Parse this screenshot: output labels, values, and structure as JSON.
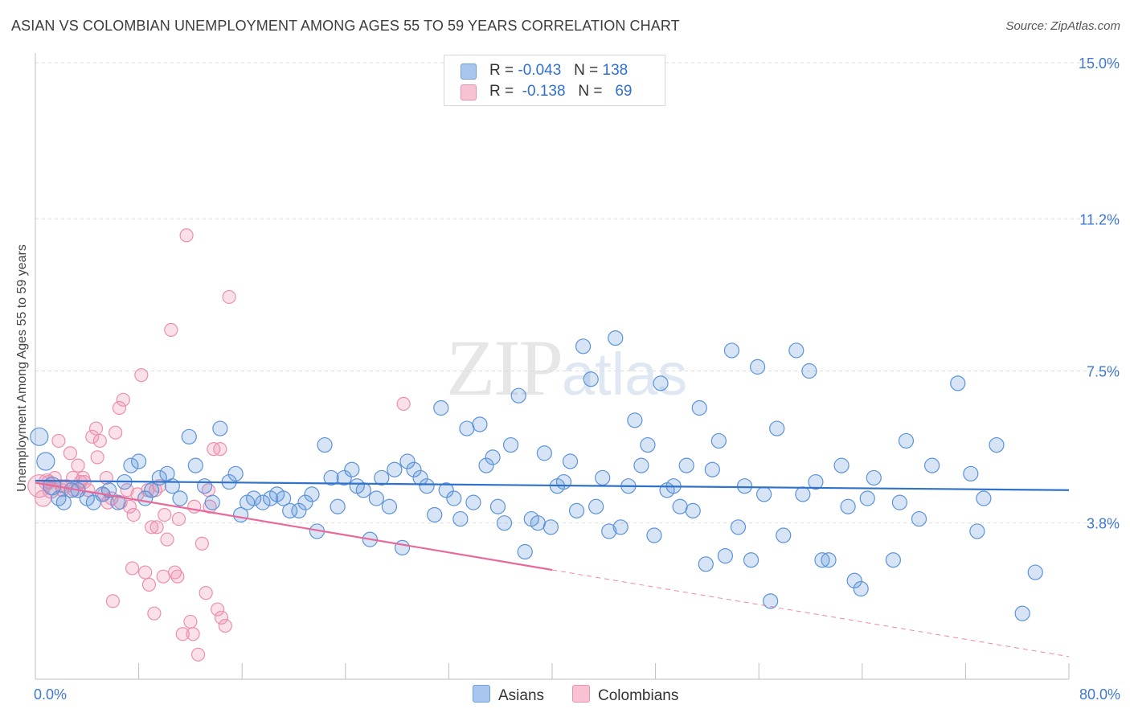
{
  "header": {
    "title": "ASIAN VS COLOMBIAN UNEMPLOYMENT AMONG AGES 55 TO 59 YEARS CORRELATION CHART",
    "source": "Source: ZipAtlas.com"
  },
  "watermark": {
    "zip": "ZIP",
    "atlas": "atlas"
  },
  "legend": {
    "rows": [
      {
        "r_label": "R =",
        "r_value": "-0.043",
        "n_label": "N =",
        "n_value": "138",
        "color": "#a9c6ef",
        "border": "#6f9fdc"
      },
      {
        "r_label": "R =",
        "r_value": "-0.138",
        "n_label": "N =",
        "n_value": "69",
        "color": "#f7c3d3",
        "border": "#ea8fae"
      }
    ]
  },
  "bottom_legend": {
    "asians": "Asians",
    "colombians": "Colombians"
  },
  "chart_data": {
    "type": "scatter",
    "xlabel": "",
    "ylabel": "Unemployment Among Ages 55 to 59 years",
    "xlim": [
      0,
      80
    ],
    "ylim": [
      0,
      15
    ],
    "x_tick_labels": [
      {
        "value": 0,
        "label": "0.0%"
      },
      {
        "value": 80,
        "label": "80.0%"
      }
    ],
    "y_tick_labels": [
      {
        "value": 3.8,
        "label": "3.8%"
      },
      {
        "value": 7.5,
        "label": "7.5%"
      },
      {
        "value": 11.2,
        "label": "11.2%"
      },
      {
        "value": 15.0,
        "label": "15.0%"
      }
    ],
    "grid": "horizontal-dashed",
    "colors": {
      "asians": "#5b93d9",
      "asians_line": "#2e72cc",
      "colombians": "#ec8fb0",
      "colombians_line": "#e8689a"
    },
    "series": [
      {
        "name": "Asians",
        "trend": {
          "x0": 0,
          "y0": 4.83,
          "x1": 80,
          "y1": 4.6
        },
        "points": [
          [
            0.3,
            5.9
          ],
          [
            0.8,
            5.3
          ],
          [
            1.3,
            4.7
          ],
          [
            1.8,
            4.4
          ],
          [
            2.2,
            4.3
          ],
          [
            2.8,
            4.6
          ],
          [
            3.3,
            4.6
          ],
          [
            4.0,
            4.4
          ],
          [
            4.5,
            4.3
          ],
          [
            5.2,
            4.5
          ],
          [
            5.7,
            4.6
          ],
          [
            6.4,
            4.3
          ],
          [
            6.9,
            4.8
          ],
          [
            7.4,
            5.2
          ],
          [
            8.0,
            5.3
          ],
          [
            8.5,
            4.4
          ],
          [
            9.0,
            4.6
          ],
          [
            9.6,
            4.9
          ],
          [
            10.2,
            5.0
          ],
          [
            10.6,
            4.7
          ],
          [
            11.2,
            4.4
          ],
          [
            11.9,
            5.9
          ],
          [
            12.4,
            5.2
          ],
          [
            13.1,
            4.7
          ],
          [
            13.7,
            4.3
          ],
          [
            14.3,
            6.1
          ],
          [
            15.0,
            4.8
          ],
          [
            15.5,
            5.0
          ],
          [
            15.9,
            4.0
          ],
          [
            16.4,
            4.3
          ],
          [
            16.9,
            4.4
          ],
          [
            17.6,
            4.3
          ],
          [
            18.2,
            4.4
          ],
          [
            18.7,
            4.5
          ],
          [
            19.2,
            4.4
          ],
          [
            19.7,
            4.1
          ],
          [
            20.4,
            4.1
          ],
          [
            20.9,
            4.3
          ],
          [
            21.4,
            4.5
          ],
          [
            21.8,
            3.6
          ],
          [
            22.4,
            5.7
          ],
          [
            22.9,
            4.9
          ],
          [
            23.4,
            4.2
          ],
          [
            23.9,
            4.9
          ],
          [
            24.5,
            5.1
          ],
          [
            24.9,
            4.7
          ],
          [
            25.4,
            4.6
          ],
          [
            25.9,
            3.4
          ],
          [
            26.4,
            4.4
          ],
          [
            26.8,
            4.9
          ],
          [
            27.4,
            4.2
          ],
          [
            27.8,
            5.1
          ],
          [
            28.4,
            3.2
          ],
          [
            28.8,
            5.3
          ],
          [
            29.3,
            5.1
          ],
          [
            29.8,
            4.9
          ],
          [
            30.3,
            4.7
          ],
          [
            30.9,
            4.0
          ],
          [
            31.4,
            6.6
          ],
          [
            31.8,
            4.6
          ],
          [
            32.4,
            4.4
          ],
          [
            32.9,
            3.9
          ],
          [
            33.4,
            6.1
          ],
          [
            33.9,
            4.3
          ],
          [
            34.4,
            6.2
          ],
          [
            34.9,
            5.2
          ],
          [
            35.4,
            5.4
          ],
          [
            35.8,
            4.2
          ],
          [
            36.3,
            3.8
          ],
          [
            36.8,
            5.7
          ],
          [
            37.4,
            6.9
          ],
          [
            37.9,
            3.1
          ],
          [
            38.4,
            3.9
          ],
          [
            38.9,
            3.8
          ],
          [
            39.4,
            5.5
          ],
          [
            39.9,
            3.7
          ],
          [
            40.4,
            4.7
          ],
          [
            40.9,
            4.8
          ],
          [
            41.4,
            5.3
          ],
          [
            41.9,
            4.1
          ],
          [
            42.4,
            8.1
          ],
          [
            43.0,
            7.3
          ],
          [
            43.4,
            4.2
          ],
          [
            43.9,
            4.9
          ],
          [
            44.4,
            3.6
          ],
          [
            44.9,
            8.3
          ],
          [
            45.3,
            3.7
          ],
          [
            45.9,
            4.7
          ],
          [
            46.4,
            6.3
          ],
          [
            46.9,
            5.2
          ],
          [
            47.4,
            5.7
          ],
          [
            47.9,
            3.5
          ],
          [
            48.4,
            7.2
          ],
          [
            48.9,
            4.6
          ],
          [
            49.4,
            4.7
          ],
          [
            49.9,
            4.2
          ],
          [
            50.4,
            5.2
          ],
          [
            50.9,
            4.1
          ],
          [
            51.4,
            6.6
          ],
          [
            51.9,
            2.8
          ],
          [
            52.4,
            5.1
          ],
          [
            52.9,
            5.8
          ],
          [
            53.4,
            3.0
          ],
          [
            53.9,
            8.0
          ],
          [
            54.4,
            3.7
          ],
          [
            54.9,
            4.7
          ],
          [
            55.4,
            2.9
          ],
          [
            55.9,
            7.6
          ],
          [
            56.4,
            4.5
          ],
          [
            56.9,
            1.9
          ],
          [
            57.4,
            6.1
          ],
          [
            57.9,
            3.5
          ],
          [
            58.9,
            8.0
          ],
          [
            59.4,
            4.5
          ],
          [
            59.9,
            7.5
          ],
          [
            60.4,
            4.8
          ],
          [
            60.9,
            2.9
          ],
          [
            61.4,
            2.9
          ],
          [
            62.4,
            5.2
          ],
          [
            62.9,
            4.2
          ],
          [
            63.4,
            2.4
          ],
          [
            63.9,
            2.2
          ],
          [
            64.4,
            4.4
          ],
          [
            64.9,
            4.9
          ],
          [
            66.4,
            2.9
          ],
          [
            66.9,
            4.3
          ],
          [
            67.4,
            5.8
          ],
          [
            68.4,
            3.9
          ],
          [
            69.4,
            5.2
          ],
          [
            71.4,
            7.2
          ],
          [
            72.4,
            5.0
          ],
          [
            72.9,
            3.6
          ],
          [
            73.4,
            4.4
          ],
          [
            74.4,
            5.7
          ],
          [
            76.4,
            1.6
          ],
          [
            77.4,
            2.6
          ]
        ]
      },
      {
        "name": "Colombians",
        "trend": {
          "x0": 0,
          "y0": 4.78,
          "x1": 40,
          "y1": 2.66
        },
        "trend_extension": {
          "x0": 40,
          "y0": 2.66,
          "x1": 80,
          "y1": 0.55
        },
        "points": [
          [
            0.3,
            4.7
          ],
          [
            0.6,
            4.4
          ],
          [
            0.9,
            4.8
          ],
          [
            1.2,
            4.6
          ],
          [
            1.5,
            4.9
          ],
          [
            1.8,
            5.8
          ],
          [
            2.1,
            4.6
          ],
          [
            2.4,
            4.7
          ],
          [
            2.7,
            5.5
          ],
          [
            3.0,
            4.6
          ],
          [
            3.3,
            5.2
          ],
          [
            3.5,
            4.8
          ],
          [
            3.8,
            4.8
          ],
          [
            4.1,
            4.6
          ],
          [
            4.4,
            5.9
          ],
          [
            4.7,
            6.1
          ],
          [
            5.0,
            5.8
          ],
          [
            5.3,
            4.5
          ],
          [
            5.6,
            4.3
          ],
          [
            5.9,
            4.4
          ],
          [
            6.2,
            6.0
          ],
          [
            6.5,
            6.6
          ],
          [
            6.8,
            6.8
          ],
          [
            7.1,
            4.6
          ],
          [
            7.3,
            4.2
          ],
          [
            7.6,
            4.0
          ],
          [
            7.9,
            4.5
          ],
          [
            8.2,
            7.4
          ],
          [
            8.5,
            2.6
          ],
          [
            8.8,
            2.3
          ],
          [
            9.0,
            3.7
          ],
          [
            9.3,
            4.6
          ],
          [
            9.6,
            4.7
          ],
          [
            9.9,
            2.5
          ],
          [
            10.2,
            3.4
          ],
          [
            10.5,
            8.5
          ],
          [
            10.8,
            2.6
          ],
          [
            11.1,
            3.9
          ],
          [
            11.4,
            1.1
          ],
          [
            11.7,
            10.8
          ],
          [
            12.0,
            1.4
          ],
          [
            12.3,
            4.2
          ],
          [
            12.6,
            0.6
          ],
          [
            12.9,
            3.3
          ],
          [
            13.2,
            2.1
          ],
          [
            13.5,
            4.2
          ],
          [
            13.8,
            5.6
          ],
          [
            14.1,
            1.7
          ],
          [
            14.4,
            1.5
          ],
          [
            14.7,
            1.3
          ],
          [
            15.0,
            9.3
          ],
          [
            28.5,
            6.7
          ],
          [
            9.2,
            1.6
          ],
          [
            6.0,
            1.9
          ],
          [
            7.5,
            2.7
          ],
          [
            11.0,
            2.5
          ],
          [
            12.2,
            1.1
          ],
          [
            10.0,
            4.0
          ],
          [
            8.7,
            4.6
          ],
          [
            4.8,
            5.4
          ],
          [
            2.9,
            4.9
          ],
          [
            5.5,
            4.9
          ],
          [
            3.7,
            4.9
          ],
          [
            1.0,
            4.8
          ],
          [
            2.0,
            4.7
          ],
          [
            6.6,
            4.3
          ],
          [
            9.4,
            3.7
          ],
          [
            13.4,
            4.6
          ],
          [
            14.3,
            5.6
          ]
        ]
      }
    ]
  }
}
